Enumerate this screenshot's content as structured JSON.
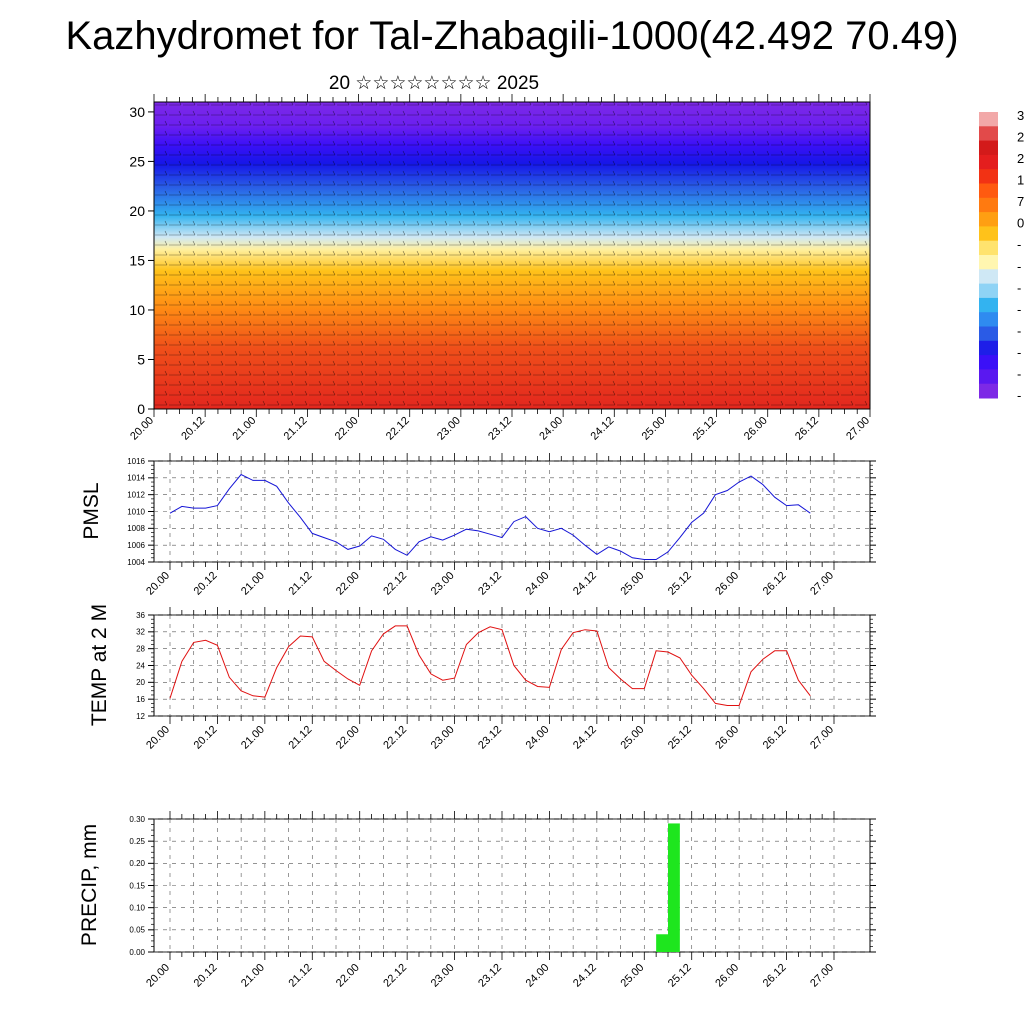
{
  "title": "Kazhydromet for Tal-Zhabagili-1000(42.492 70.49)",
  "subtitle": "20 ☆☆☆☆☆☆☆☆ 2025",
  "time_labels": [
    "20.00",
    "20.12",
    "21.00",
    "21.12",
    "22.00",
    "22.12",
    "23.00",
    "23.12",
    "24.00",
    "24.12",
    "25.00",
    "25.12",
    "26.00",
    "26.12",
    "27.00"
  ],
  "colorbar": {
    "colors": [
      "#7d29e6",
      "#5a18f0",
      "#3b10f7",
      "#1e1ee8",
      "#2a5be6",
      "#2f8bf0",
      "#33b3f0",
      "#8fd3f5",
      "#cfe8f5",
      "#fff6b0",
      "#ffe36e",
      "#ffc21a",
      "#ff9f12",
      "#ff7a10",
      "#ff5a10",
      "#f23214",
      "#e41e1e",
      "#d31a1a",
      "#e24a4a",
      "#f2a8a8"
    ],
    "labels": [
      "3",
      "2",
      "2",
      "1",
      "7",
      "0",
      "-",
      "-",
      "-",
      "-",
      "-",
      "-",
      "-",
      "-"
    ]
  },
  "chart_data": [
    {
      "type": "heatmap",
      "name": "upper_air",
      "x": "time_labels",
      "ylim": [
        0,
        31
      ],
      "yticks": [
        0,
        5,
        10,
        15,
        20,
        25,
        30
      ],
      "note_values": "temperature-like field, warm near surface, cold aloft, with wind barbs"
    },
    {
      "type": "line",
      "ylabel": "PMSL",
      "ylim": [
        1004,
        1016
      ],
      "yticks": [
        1004,
        1006,
        1008,
        1010,
        1012,
        1014,
        1016
      ],
      "color": "#1515d6",
      "x_hours": [
        0,
        3,
        6,
        9,
        12,
        15,
        18,
        21,
        24,
        27,
        30,
        33,
        36,
        39,
        42,
        45,
        48,
        51,
        54,
        57,
        60,
        63,
        66,
        69,
        72,
        75,
        78,
        81,
        84,
        87,
        90,
        93,
        96,
        99,
        102,
        105,
        108,
        111,
        114,
        117,
        120,
        123,
        126,
        129,
        132,
        135,
        138,
        141,
        144,
        147,
        150,
        153,
        156,
        159,
        162
      ],
      "values": [
        1009.8,
        1010.6,
        1010.4,
        1010.4,
        1010.7,
        1012.7,
        1014.4,
        1013.7,
        1013.7,
        1013.0,
        1011.0,
        1009.3,
        1007.4,
        1006.9,
        1006.4,
        1005.5,
        1005.9,
        1007.1,
        1006.7,
        1005.5,
        1004.8,
        1006.4,
        1007.0,
        1006.6,
        1007.2,
        1007.9,
        1007.7,
        1007.3,
        1006.9,
        1008.8,
        1009.4,
        1008.0,
        1007.6,
        1008.0,
        1007.2,
        1006.0,
        1004.9,
        1005.8,
        1005.3,
        1004.5,
        1004.3,
        1004.3,
        1005.2,
        1006.9,
        1008.7,
        1009.8,
        1012.0,
        1012.5,
        1013.5,
        1014.2,
        1013.2,
        1011.7,
        1010.7,
        1010.8,
        1009.8
      ]
    },
    {
      "type": "line",
      "ylabel": "TEMP at 2 M",
      "ylim": [
        12,
        36
      ],
      "yticks": [
        12,
        16,
        20,
        24,
        28,
        32,
        36
      ],
      "color": "#e01010",
      "x_hours": [
        0,
        3,
        6,
        9,
        12,
        15,
        18,
        21,
        24,
        27,
        30,
        33,
        36,
        39,
        42,
        45,
        48,
        51,
        54,
        57,
        60,
        63,
        66,
        69,
        72,
        75,
        78,
        81,
        84,
        87,
        90,
        93,
        96,
        99,
        102,
        105,
        108,
        111,
        114,
        117,
        120,
        123,
        126,
        129,
        132,
        135,
        138,
        141,
        144,
        147,
        150,
        153,
        156,
        159,
        162
      ],
      "values": [
        16.2,
        25.0,
        29.5,
        30.0,
        28.8,
        21.2,
        18.0,
        16.8,
        16.5,
        23.5,
        28.5,
        31.0,
        30.8,
        25.0,
        22.8,
        20.8,
        19.3,
        27.5,
        31.5,
        33.4,
        33.4,
        26.5,
        22.0,
        20.5,
        21.0,
        29.0,
        31.8,
        33.2,
        32.5,
        24.0,
        20.5,
        19.0,
        18.8,
        27.8,
        31.8,
        32.5,
        32.2,
        23.5,
        20.8,
        18.5,
        18.5,
        27.5,
        27.2,
        25.8,
        21.7,
        18.5,
        15.0,
        14.5,
        14.5,
        22.5,
        25.5,
        27.5,
        27.5,
        20.5,
        16.8
      ]
    },
    {
      "type": "bar",
      "ylabel": "PRECIP, mm",
      "ylim": [
        0,
        0.3
      ],
      "yticks": [
        "0.00",
        "0.05",
        "0.10",
        "0.15",
        "0.20",
        "0.25",
        "0.30"
      ],
      "color": "#1ee61e",
      "bars": [
        {
          "x_hours_start": 123,
          "x_hours_end": 126,
          "value": 0.04
        },
        {
          "x_hours_start": 126,
          "x_hours_end": 129,
          "value": 0.29
        }
      ]
    }
  ]
}
